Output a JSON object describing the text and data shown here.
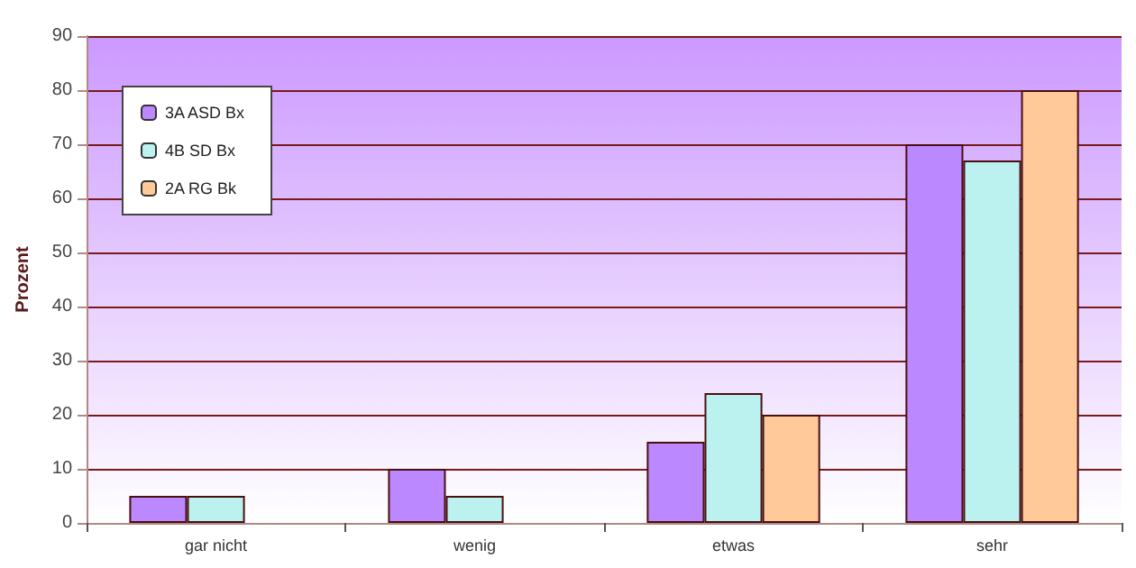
{
  "chart_data": {
    "type": "bar",
    "ylabel": "Prozent",
    "categories": [
      "gar nicht",
      "wenig",
      "etwas",
      "sehr"
    ],
    "series": [
      {
        "name": "3A ASD Bx",
        "color": "#bb88ff",
        "values": [
          5,
          10,
          15,
          70
        ]
      },
      {
        "name": "4B SD Bx",
        "color": "#bbf2f0",
        "values": [
          5,
          5,
          24,
          67
        ]
      },
      {
        "name": "2A RG Bk",
        "color": "#ffc99a",
        "values": [
          null,
          null,
          20,
          80
        ]
      }
    ],
    "ylim": [
      0,
      90
    ],
    "yticks": [
      0,
      10,
      20,
      30,
      40,
      50,
      60,
      70,
      80,
      90
    ],
    "grid": "y",
    "legend": "top left"
  }
}
